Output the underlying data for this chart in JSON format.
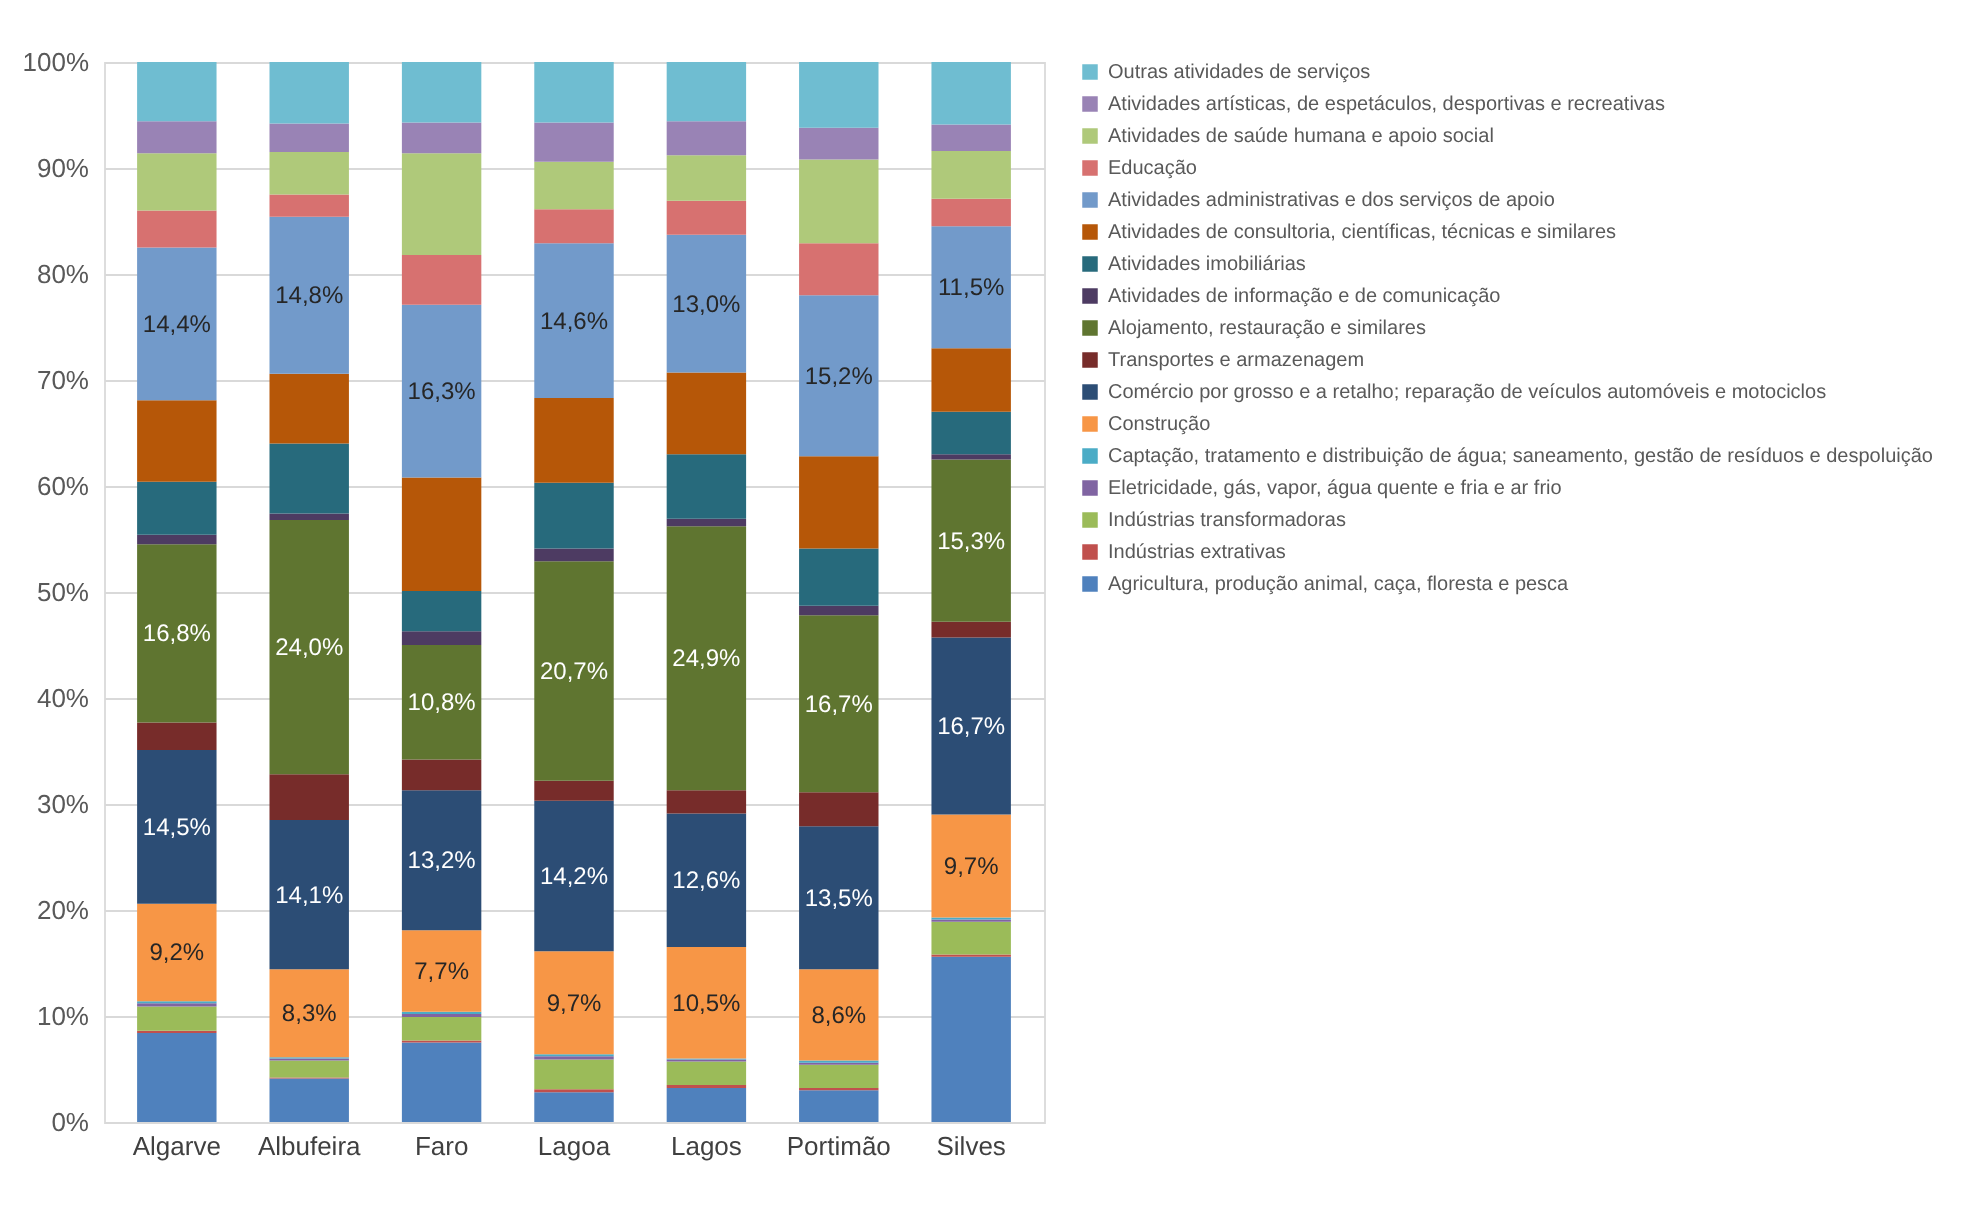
{
  "chart_data": {
    "type": "bar",
    "stacked": true,
    "categories": [
      "Algarve",
      "Albufeira",
      "Faro",
      "Lagoa",
      "Lagos",
      "Portimão",
      "Silves"
    ],
    "series": [
      {
        "name": "Agricultura, produção animal, caça, floresta e pesca",
        "color": "#4f81bd",
        "values": [
          8.4,
          4.1,
          7.5,
          2.8,
          3.2,
          3.0,
          15.6
        ]
      },
      {
        "name": "Indústrias extrativas",
        "color": "#c0504d",
        "values": [
          0.2,
          0.1,
          0.2,
          0.3,
          0.3,
          0.2,
          0.2
        ]
      },
      {
        "name": "Indústrias transformadoras",
        "color": "#9bbb59",
        "values": [
          2.3,
          1.6,
          2.2,
          2.8,
          2.2,
          2.2,
          3.1
        ]
      },
      {
        "name": "Eletricidade, gás, vapor, água quente e fria e ar frio",
        "color": "#8064a2",
        "values": [
          0.3,
          0.2,
          0.3,
          0.3,
          0.2,
          0.2,
          0.2
        ]
      },
      {
        "name": "Captação, tratamento e distribuição de água; saneamento, gestão de resíduos e despoluição",
        "color": "#4bacc6",
        "values": [
          0.2,
          0.1,
          0.2,
          0.2,
          0.1,
          0.2,
          0.2
        ]
      },
      {
        "name": "Construção",
        "color": "#f79646",
        "values": [
          9.2,
          8.3,
          7.7,
          9.7,
          10.5,
          8.6,
          9.7
        ],
        "value_labels": [
          "9,2%",
          "8,3%",
          "7,7%",
          "9,7%",
          "10,5%",
          "8,6%",
          "9,7%"
        ]
      },
      {
        "name": "Comércio por grosso e a retalho; reparação de veículos automóveis e motociclos",
        "color": "#2c4d75",
        "values": [
          14.5,
          14.1,
          13.2,
          14.2,
          12.6,
          13.5,
          16.7
        ],
        "value_labels": [
          "14,5%",
          "14,1%",
          "13,2%",
          "14,2%",
          "12,6%",
          "13,5%",
          "16,7%"
        ]
      },
      {
        "name": "Transportes e armazenagem",
        "color": "#772c2a",
        "values": [
          2.6,
          4.3,
          2.9,
          1.9,
          2.2,
          3.2,
          1.5
        ]
      },
      {
        "name": "Alojamento, restauração e similares",
        "color": "#5f7530",
        "values": [
          16.8,
          24.0,
          10.8,
          20.7,
          24.9,
          16.7,
          15.3
        ],
        "value_labels": [
          "16,8%",
          "24,0%",
          "10,8%",
          "20,7%",
          "24,9%",
          "16,7%",
          "15,3%"
        ]
      },
      {
        "name": "Atividades de informação e de comunicação",
        "color": "#4d3b62",
        "values": [
          0.9,
          0.6,
          1.3,
          1.2,
          0.7,
          0.9,
          0.5
        ]
      },
      {
        "name": "Atividades imobiliárias",
        "color": "#276a7c",
        "values": [
          5.0,
          6.6,
          3.8,
          6.2,
          6.1,
          5.4,
          4.0
        ]
      },
      {
        "name": "Atividades de consultoria, científicas, técnicas e similares",
        "color": "#b65708",
        "values": [
          7.7,
          6.6,
          10.7,
          8.0,
          7.7,
          8.7,
          6.0
        ]
      },
      {
        "name": "Atividades administrativas e dos serviços de apoio",
        "color": "#729aca",
        "values": [
          14.4,
          14.8,
          16.3,
          14.6,
          13.0,
          15.2,
          11.5
        ],
        "value_labels": [
          "14,4%",
          "14,8%",
          "16,3%",
          "14,6%",
          "13,0%",
          "15,2%",
          "11,5%"
        ]
      },
      {
        "name": "Educação",
        "color": "#d77170",
        "values": [
          3.5,
          2.1,
          4.7,
          3.2,
          3.2,
          4.9,
          2.6
        ]
      },
      {
        "name": "Atividades de saúde humana e apoio social",
        "color": "#afc97a",
        "values": [
          5.4,
          4.0,
          9.6,
          4.5,
          4.3,
          7.9,
          4.5
        ]
      },
      {
        "name": "Atividades artísticas, de espetáculos, desportivas e recreativas",
        "color": "#9983b5",
        "values": [
          3.0,
          2.7,
          2.9,
          3.7,
          3.2,
          3.0,
          2.5
        ]
      },
      {
        "name": "Outras atividades de serviços",
        "color": "#6fbdd1",
        "values": [
          5.6,
          5.8,
          5.7,
          5.7,
          5.6,
          6.2,
          5.9
        ]
      }
    ],
    "ylim": [
      0,
      100
    ],
    "yticks": [
      {
        "value": 0,
        "label": "0%"
      },
      {
        "value": 10,
        "label": "10%"
      },
      {
        "value": 20,
        "label": "20%"
      },
      {
        "value": 30,
        "label": "30%"
      },
      {
        "value": 40,
        "label": "40%"
      },
      {
        "value": 50,
        "label": "50%"
      },
      {
        "value": 60,
        "label": "60%"
      },
      {
        "value": 70,
        "label": "70%"
      },
      {
        "value": 80,
        "label": "80%"
      },
      {
        "value": 90,
        "label": "90%"
      },
      {
        "value": 100,
        "label": "100%"
      }
    ],
    "grid": "y",
    "legend": "right"
  }
}
